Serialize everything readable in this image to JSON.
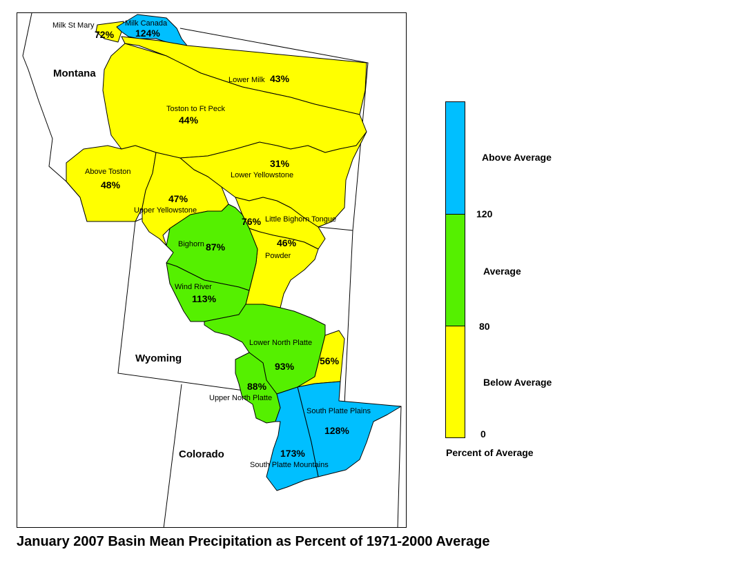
{
  "title": "January 2007 Basin Mean Precipitation as Percent of 1971-2000 Average",
  "colors": {
    "above": "#00BFFF",
    "average": "#55F000",
    "below": "#FFFF00",
    "outline": "#000000"
  },
  "states": [
    "Montana",
    "Wyoming",
    "Colorado"
  ],
  "basins": [
    {
      "name": "Milk St Mary",
      "percent": "72%",
      "category": "below"
    },
    {
      "name": "Milk Canada",
      "percent": "124%",
      "category": "above"
    },
    {
      "name": "Lower Milk",
      "percent": "43%",
      "category": "below"
    },
    {
      "name": "Toston to Ft Peck",
      "percent": "44%",
      "category": "below"
    },
    {
      "name": "Above Toston",
      "percent": "48%",
      "category": "below"
    },
    {
      "name": "Lower Yellowstone",
      "percent": "31%",
      "category": "below"
    },
    {
      "name": "Upper Yellowstone",
      "percent": "47%",
      "category": "below"
    },
    {
      "name": "Little Bighorn Tongue",
      "percent": "76%",
      "category": "below"
    },
    {
      "name": "Bighorn",
      "percent": "87%",
      "category": "average"
    },
    {
      "name": "Powder",
      "percent": "46%",
      "category": "below"
    },
    {
      "name": "Wind River",
      "percent": "113%",
      "category": "average"
    },
    {
      "name": "Lower North Platte",
      "percent": "93%",
      "category": "average"
    },
    {
      "name": "",
      "percent": "56%",
      "category": "below"
    },
    {
      "name": "Upper North Platte",
      "percent": "88%",
      "category": "average"
    },
    {
      "name": "South Platte Plains",
      "percent": "128%",
      "category": "above"
    },
    {
      "name": "South Platte Mountains",
      "percent": "173%",
      "category": "above"
    }
  ],
  "legend": {
    "categories": [
      "Above Average",
      "Average",
      "Below Average"
    ],
    "breaks": [
      "120",
      "80",
      "0"
    ],
    "caption": "Percent of Average"
  }
}
